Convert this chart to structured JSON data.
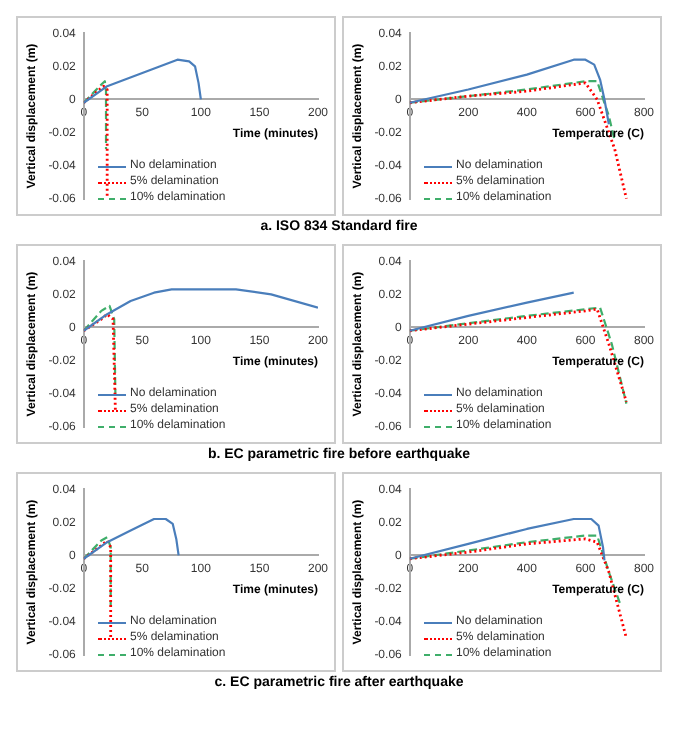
{
  "chart_data": [
    {
      "type": "line",
      "xlabel": "Time (minutes)",
      "ylabel": "Vertical displacement (m)",
      "annotations": [
        "a. ISO 834 Standard fire"
      ],
      "xlim": [
        0,
        200
      ],
      "xticks": [
        0,
        50,
        100,
        150,
        200
      ],
      "ylim": [
        -0.06,
        0.04
      ],
      "yticks": [
        -0.06,
        -0.04,
        -0.02,
        0,
        0.02,
        0.04
      ],
      "grid": false,
      "legend": "bottom",
      "series": [
        {
          "name": "No delamination",
          "color": "#4a7ebb",
          "line_style": "solid",
          "x": [
            0,
            20,
            50,
            80,
            90,
            95,
            98,
            100
          ],
          "values": [
            -0.002,
            0.008,
            0.016,
            0.024,
            0.023,
            0.02,
            0.01,
            0
          ]
        },
        {
          "name": "5% delamination",
          "color": "#ff0000",
          "line_style": "dotted",
          "x": [
            0,
            10,
            17,
            20,
            20
          ],
          "values": [
            -0.002,
            0.004,
            0.008,
            0.006,
            -0.06
          ]
        },
        {
          "name": "10% delamination",
          "color": "#3fae6a",
          "line_style": "dashed",
          "x": [
            0,
            15,
            18,
            19,
            19
          ],
          "values": [
            -0.002,
            0.009,
            0.011,
            0.005,
            -0.03
          ]
        }
      ]
    },
    {
      "type": "line",
      "xlabel": "Temperature (C)",
      "ylabel": "Vertical displacement (m)",
      "xlim": [
        0,
        800
      ],
      "xticks": [
        0,
        200,
        400,
        600,
        800
      ],
      "ylim": [
        -0.06,
        0.04
      ],
      "yticks": [
        -0.06,
        -0.04,
        -0.02,
        0,
        0.02,
        0.04
      ],
      "grid": false,
      "legend": "bottom",
      "series": [
        {
          "name": "No delamination",
          "color": "#4a7ebb",
          "line_style": "solid",
          "x": [
            0,
            200,
            400,
            560,
            600,
            630,
            650,
            665,
            680
          ],
          "values": [
            -0.002,
            0.006,
            0.015,
            0.024,
            0.024,
            0.021,
            0.012,
            0,
            -0.015
          ]
        },
        {
          "name": "5% delamination",
          "color": "#ff0000",
          "line_style": "dotted",
          "x": [
            0,
            200,
            400,
            600,
            640,
            700,
            740
          ],
          "values": [
            -0.002,
            0.002,
            0.005,
            0.01,
            0,
            -0.03,
            -0.06
          ]
        },
        {
          "name": "10% delamination",
          "color": "#3fae6a",
          "line_style": "dashed",
          "x": [
            0,
            400,
            600,
            640,
            680,
            700
          ],
          "values": [
            -0.002,
            0.006,
            0.011,
            0.011,
            -0.01,
            -0.025
          ]
        }
      ]
    },
    {
      "type": "line",
      "xlabel": "Time (minutes)",
      "ylabel": "Vertical displacement (m)",
      "annotations": [
        "b. EC parametric fire before earthquake"
      ],
      "xlim": [
        0,
        200
      ],
      "xticks": [
        0,
        50,
        100,
        150,
        200
      ],
      "ylim": [
        -0.06,
        0.04
      ],
      "yticks": [
        -0.06,
        -0.04,
        -0.02,
        0,
        0.02,
        0.04
      ],
      "grid": false,
      "legend": "bottom",
      "series": [
        {
          "name": "No delamination",
          "color": "#4a7ebb",
          "line_style": "solid",
          "x": [
            0,
            20,
            40,
            60,
            75,
            100,
            130,
            160,
            200
          ],
          "values": [
            -0.002,
            0.008,
            0.016,
            0.021,
            0.023,
            0.023,
            0.023,
            0.02,
            0.012
          ]
        },
        {
          "name": "5% delamination",
          "color": "#ff0000",
          "line_style": "dotted",
          "x": [
            0,
            15,
            20,
            25,
            27
          ],
          "values": [
            -0.002,
            0.005,
            0.008,
            0.005,
            -0.05
          ]
        },
        {
          "name": "10% delamination",
          "color": "#3fae6a",
          "line_style": "dashed",
          "x": [
            0,
            15,
            22,
            26,
            27
          ],
          "values": [
            -0.002,
            0.01,
            0.013,
            0.005,
            -0.04
          ]
        }
      ]
    },
    {
      "type": "line",
      "xlabel": "Temperature (C)",
      "ylabel": "Vertical displacement (m)",
      "xlim": [
        0,
        800
      ],
      "xticks": [
        0,
        200,
        400,
        600,
        800
      ],
      "ylim": [
        -0.06,
        0.04
      ],
      "yticks": [
        -0.06,
        -0.04,
        -0.02,
        0,
        0.02,
        0.04
      ],
      "grid": false,
      "legend": "bottom",
      "series": [
        {
          "name": "No delamination",
          "color": "#4a7ebb",
          "line_style": "solid",
          "x": [
            0,
            200,
            400,
            560
          ],
          "values": [
            -0.002,
            0.007,
            0.015,
            0.021
          ]
        },
        {
          "name": "5% delamination",
          "color": "#ff0000",
          "line_style": "dotted",
          "x": [
            0,
            200,
            400,
            600,
            640,
            680,
            740
          ],
          "values": [
            -0.002,
            0.002,
            0.006,
            0.01,
            0.011,
            -0.01,
            -0.045
          ]
        },
        {
          "name": "10% delamination",
          "color": "#3fae6a",
          "line_style": "dashed",
          "x": [
            0,
            400,
            600,
            650,
            690,
            740
          ],
          "values": [
            -0.002,
            0.007,
            0.011,
            0.012,
            -0.01,
            -0.046
          ]
        }
      ]
    },
    {
      "type": "line",
      "xlabel": "Time (minutes)",
      "ylabel": "Vertical displacement (m)",
      "annotations": [
        "c. EC parametric fire after earthquake"
      ],
      "xlim": [
        0,
        200
      ],
      "xticks": [
        0,
        50,
        100,
        150,
        200
      ],
      "ylim": [
        -0.06,
        0.04
      ],
      "yticks": [
        -0.06,
        -0.04,
        -0.02,
        0,
        0.02,
        0.04
      ],
      "grid": false,
      "legend": "bottom",
      "series": [
        {
          "name": "No delamination",
          "color": "#4a7ebb",
          "line_style": "solid",
          "x": [
            0,
            20,
            40,
            60,
            70,
            76,
            79,
            81
          ],
          "values": [
            -0.002,
            0.008,
            0.015,
            0.022,
            0.022,
            0.019,
            0.01,
            0
          ]
        },
        {
          "name": "5% delamination",
          "color": "#ff0000",
          "line_style": "dotted",
          "x": [
            0,
            15,
            20,
            23,
            23
          ],
          "values": [
            -0.002,
            0.006,
            0.009,
            0.005,
            -0.05
          ]
        },
        {
          "name": "10% delamination",
          "color": "#3fae6a",
          "line_style": "dashed",
          "x": [
            0,
            15,
            20,
            23,
            23
          ],
          "values": [
            -0.002,
            0.009,
            0.011,
            0.005,
            -0.03
          ]
        }
      ]
    },
    {
      "type": "line",
      "xlabel": "Temperature (C)",
      "ylabel": "Vertical displacement (m)",
      "xlim": [
        0,
        800
      ],
      "xticks": [
        0,
        200,
        400,
        600,
        800
      ],
      "ylim": [
        -0.06,
        0.04
      ],
      "yticks": [
        -0.06,
        -0.04,
        -0.02,
        0,
        0.02,
        0.04
      ],
      "grid": false,
      "legend": "bottom",
      "series": [
        {
          "name": "No delamination",
          "color": "#4a7ebb",
          "line_style": "solid",
          "x": [
            0,
            200,
            400,
            560,
            620,
            645,
            660,
            665
          ],
          "values": [
            -0.002,
            0.007,
            0.016,
            0.022,
            0.022,
            0.018,
            0.005,
            -0.003
          ]
        },
        {
          "name": "5% delamination",
          "color": "#ff0000",
          "line_style": "dotted",
          "x": [
            0,
            200,
            400,
            600,
            640,
            680,
            740
          ],
          "values": [
            -0.002,
            0.002,
            0.007,
            0.01,
            0.008,
            -0.01,
            -0.05
          ]
        },
        {
          "name": "10% delamination",
          "color": "#3fae6a",
          "line_style": "dashed",
          "x": [
            0,
            400,
            600,
            640,
            680,
            720
          ],
          "values": [
            -0.002,
            0.008,
            0.012,
            0.012,
            -0.01,
            -0.03
          ]
        }
      ]
    }
  ]
}
